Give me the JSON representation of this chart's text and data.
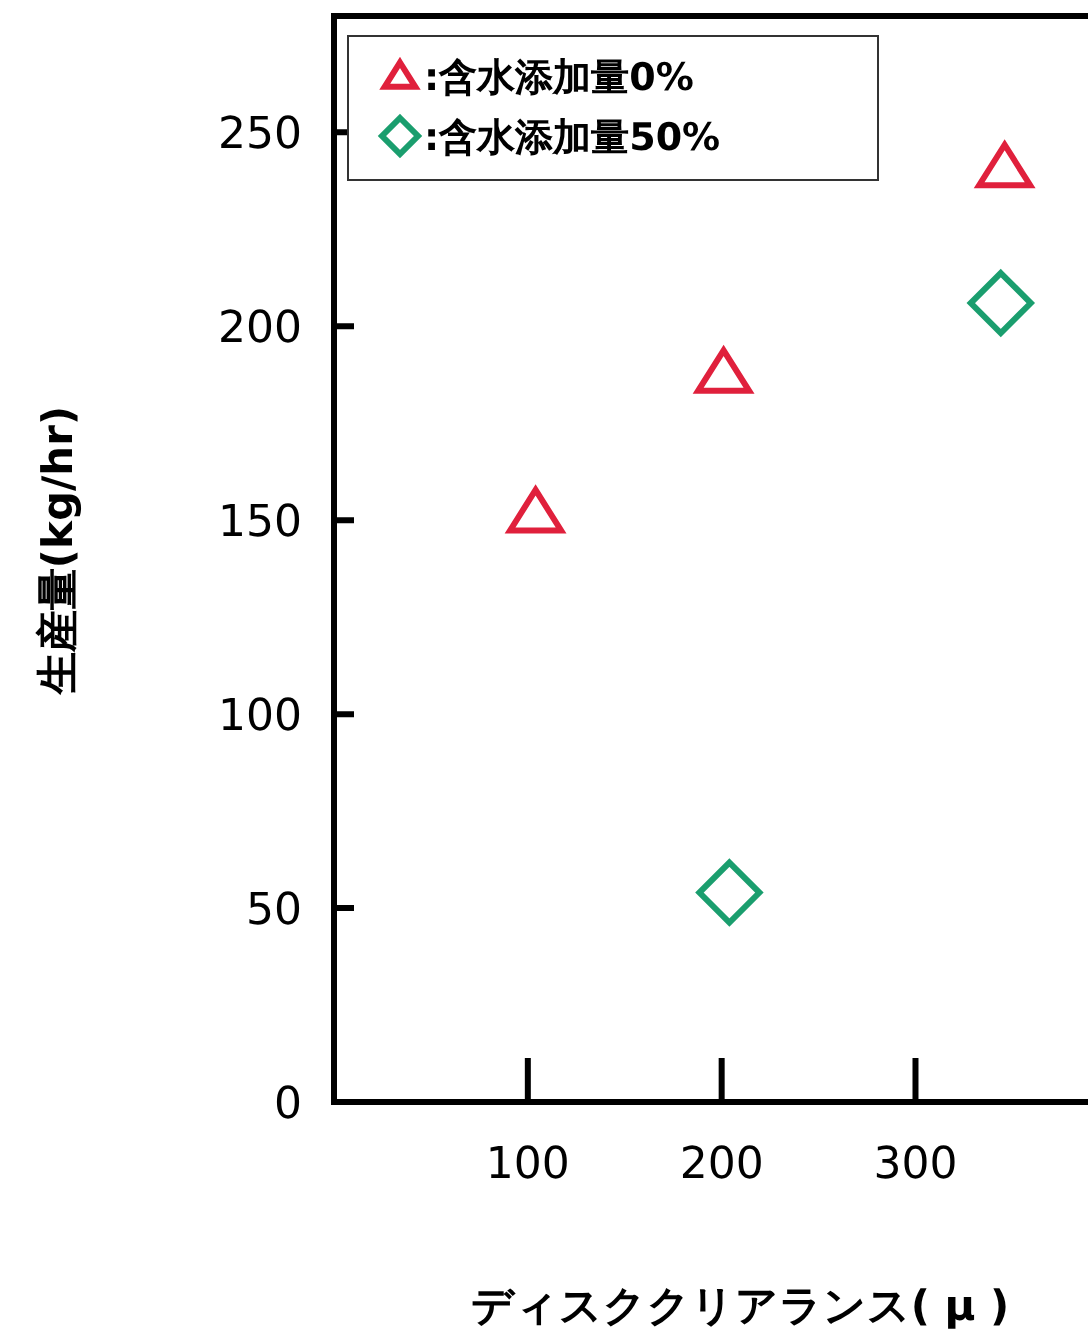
{
  "chart_data": {
    "type": "scatter",
    "xlabel": "ディスククリアランス( μ )",
    "ylabel": "生産量(kg/hr)",
    "xlim": [
      0,
      389
    ],
    "ylim": [
      0,
      280
    ],
    "xticks": [
      100,
      200,
      300
    ],
    "yticks": [
      0,
      50,
      100,
      150,
      200,
      250
    ],
    "legend": "top left",
    "grid": false,
    "series": [
      {
        "name": ":含水添加量0%",
        "color": "#e0203c",
        "marker": "triangle",
        "x": [
          104,
          201,
          346
        ],
        "values": [
          152,
          188,
          241
        ]
      },
      {
        "name": ":含水添加量50%",
        "color": "#1a9e6e",
        "marker": "diamond",
        "x": [
          204,
          344
        ],
        "values": [
          54,
          206
        ]
      }
    ]
  }
}
